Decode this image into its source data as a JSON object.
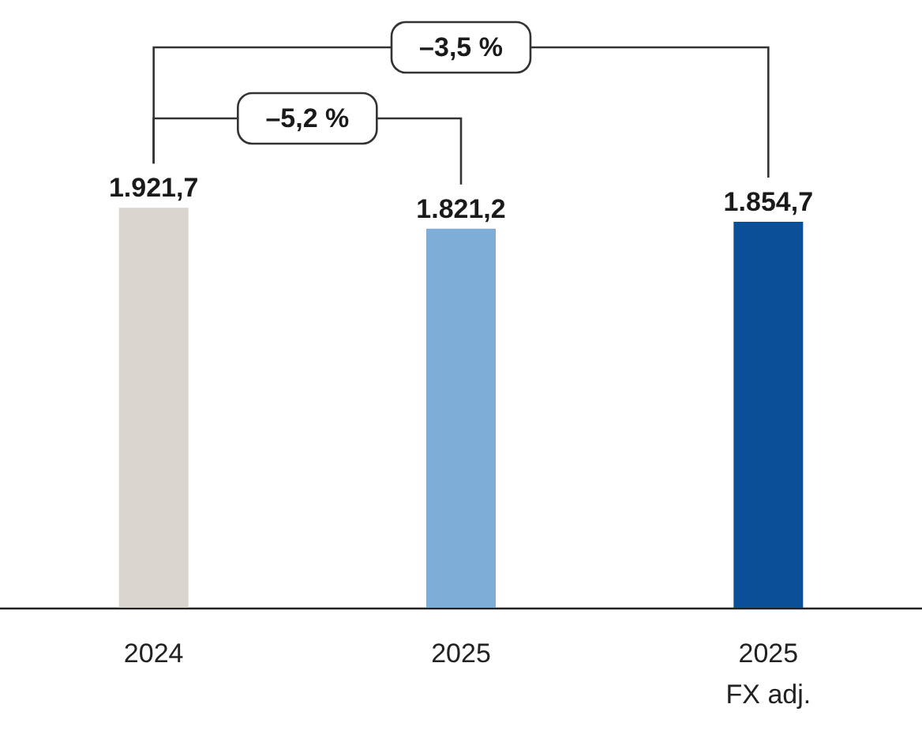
{
  "chart_data": {
    "type": "bar",
    "categories": [
      "2024",
      "2025",
      "2025\nFX adj."
    ],
    "values": [
      1921.7,
      1821.2,
      1854.7
    ],
    "colors": [
      "#d9d4ce",
      "#7eadd8",
      "#0a4f98"
    ],
    "value_labels": [
      "1.921,7",
      "1.821,2",
      "1.854,7"
    ],
    "annotations": [
      "–3,5 %",
      "–5,2 %"
    ]
  }
}
